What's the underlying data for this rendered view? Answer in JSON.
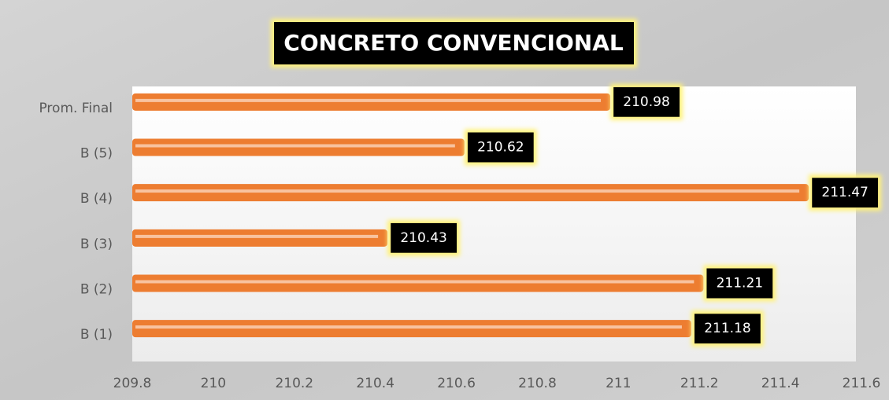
{
  "chart_data": {
    "type": "bar",
    "orientation": "horizontal",
    "title": "CONCRETO CONVENCIONAL",
    "categories": [
      "B (1)",
      "B (2)",
      "B (3)",
      "B (4)",
      "B (5)",
      "Prom. Final"
    ],
    "values": [
      211.18,
      211.21,
      210.43,
      211.47,
      210.62,
      210.98
    ],
    "color": "#ed7d31",
    "xlim": [
      209.8,
      211.6
    ],
    "xticks": [
      209.8,
      210,
      210.2,
      210.4,
      210.6,
      210.8,
      211,
      211.2,
      211.4,
      211.6
    ]
  }
}
